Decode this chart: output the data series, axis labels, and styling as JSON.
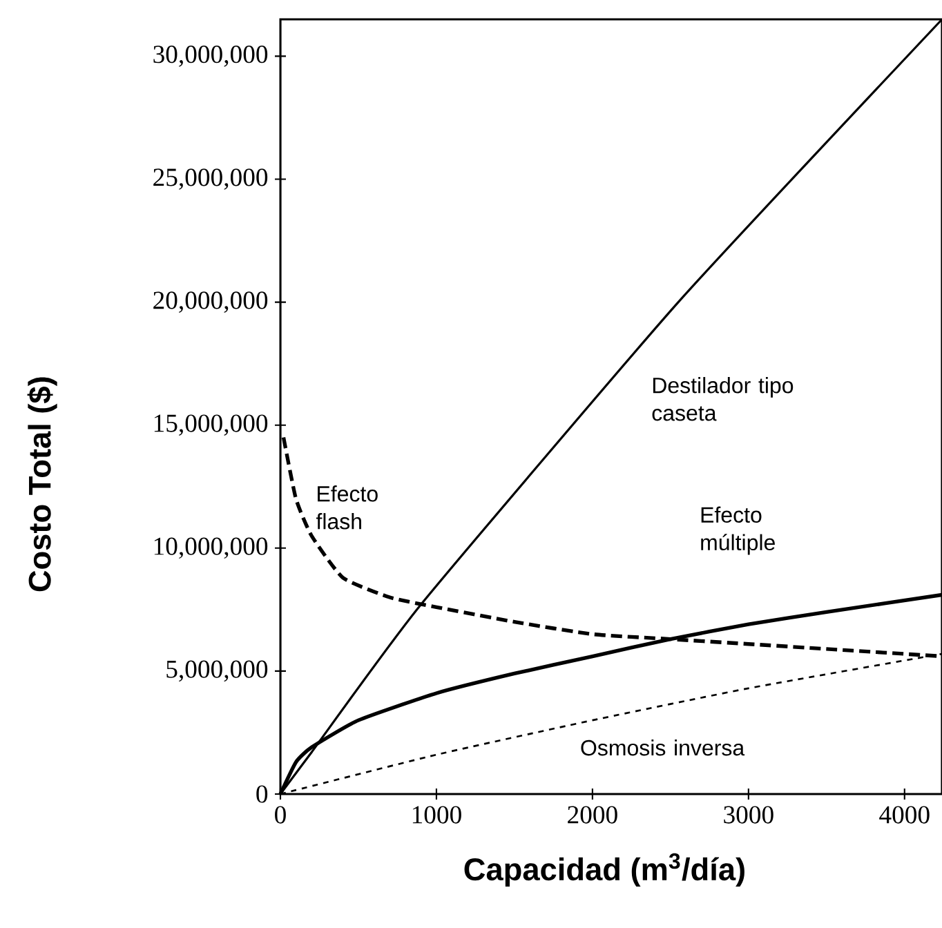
{
  "chart_data": {
    "type": "line",
    "xlabel": "Capacidad (m$^{3}$/día)",
    "ylabel": "Costo Total ($)",
    "xlim": [
      0,
      4240
    ],
    "ylim": [
      0,
      31500000
    ],
    "xticks": [
      0,
      1000,
      2000,
      3000,
      4000
    ],
    "yticks": [
      {
        "value": 0,
        "label": "0"
      },
      {
        "value": 5000000,
        "label": "5,000,000"
      },
      {
        "value": 10000000,
        "label": "10,000,000"
      },
      {
        "value": 15000000,
        "label": "15,000,000"
      },
      {
        "value": 20000000,
        "label": "20,000,000"
      },
      {
        "value": 25000000,
        "label": "25,000,000"
      },
      {
        "value": 30000000,
        "label": "30,000,000"
      }
    ],
    "grid": false,
    "legend": false,
    "marker": "none",
    "series": [
      {
        "name": "Destilador tipo caseta",
        "color": "#000000",
        "line_style": "solid",
        "x": [
          0,
          200,
          900,
          2550,
          4240
        ],
        "values": [
          0,
          1700000,
          7700000,
          20000000,
          31500000
        ]
      },
      {
        "name": "Efecto múltiple",
        "color": "#000000",
        "line_style": "solid",
        "x": [
          0,
          100,
          200,
          500,
          1000,
          1500,
          2000,
          2500,
          3000,
          3500,
          4240
        ],
        "values": [
          0,
          1300000,
          1900000,
          3000000,
          4100000,
          4900000,
          5600000,
          6300000,
          6900000,
          7400000,
          8100000
        ]
      },
      {
        "name": "Efecto flash",
        "color": "#000000",
        "line_style": "dashed",
        "x": [
          20,
          100,
          200,
          400,
          700,
          1000,
          1500,
          2000,
          2500,
          3000,
          3500,
          4240
        ],
        "values": [
          14500000,
          12000000,
          10500000,
          8800000,
          8000000,
          7600000,
          7000000,
          6500000,
          6300000,
          6100000,
          5900000,
          5600000
        ]
      },
      {
        "name": "Osmosis inversa",
        "color": "#000000",
        "line_style": "dotted",
        "x": [
          0,
          1000,
          2000,
          3000,
          4240
        ],
        "values": [
          0,
          1600000,
          3000000,
          4300000,
          5700000
        ]
      }
    ]
  }
}
